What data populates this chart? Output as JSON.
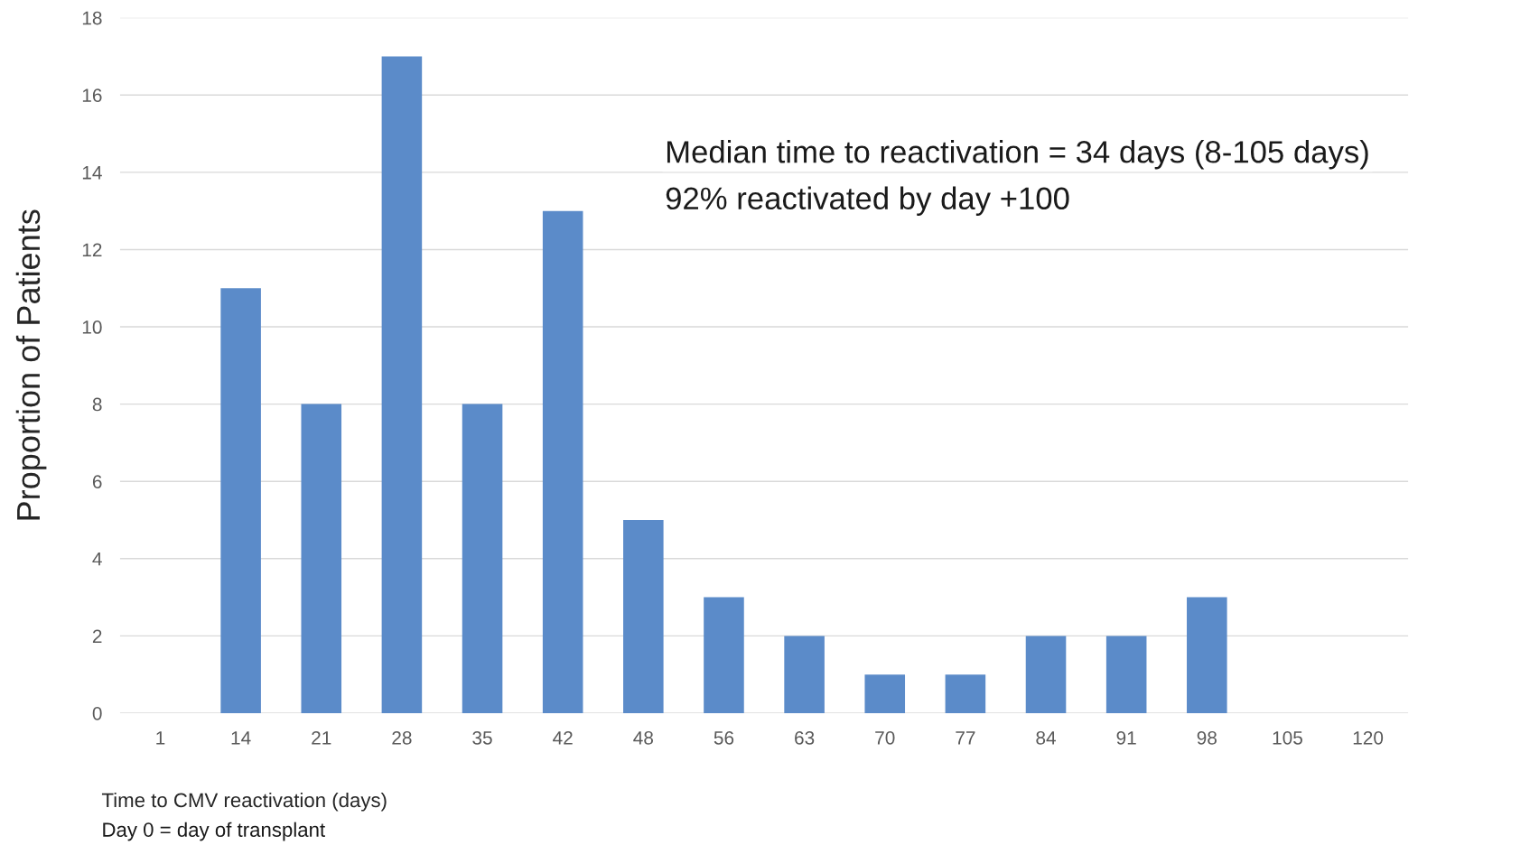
{
  "chart_data": {
    "type": "bar",
    "ylabel": "Proportion of Patients",
    "xlabel": "Time to CMV reactivation (days)",
    "categories": [
      "1",
      "14",
      "21",
      "28",
      "35",
      "42",
      "48",
      "56",
      "63",
      "70",
      "77",
      "84",
      "91",
      "98",
      "105",
      "120"
    ],
    "values": [
      0,
      11,
      8,
      17,
      8,
      13,
      5,
      3,
      2,
      1,
      1,
      2,
      2,
      3,
      0,
      0
    ],
    "color": "#5b8bc9",
    "ylim": [
      0,
      18
    ],
    "yticks": [
      0,
      2,
      4,
      6,
      8,
      10,
      12,
      14,
      16,
      18
    ],
    "grid": "y",
    "legend": false,
    "annotations": [
      "Median time to reactivation = 34 days (8-105 days)",
      "92% reactivated by day +100",
      "Day 0 = day of transplant"
    ]
  }
}
